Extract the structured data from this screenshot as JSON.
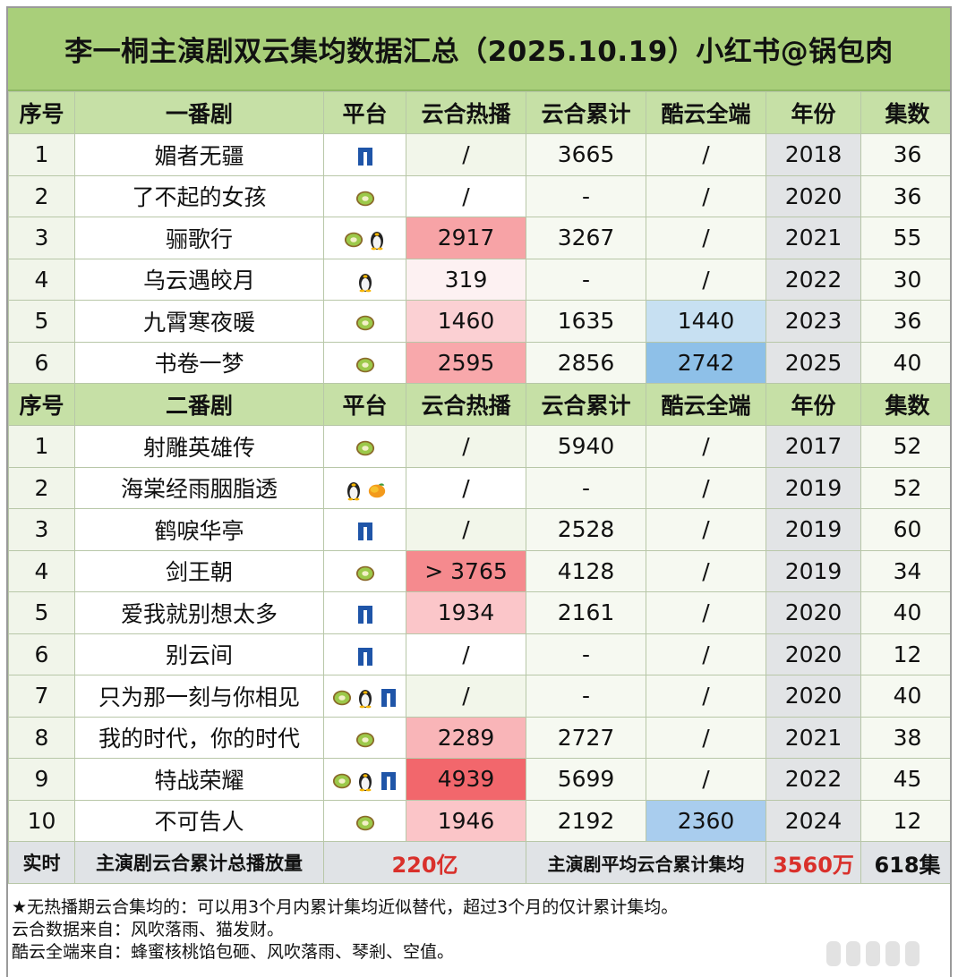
{
  "title": "李一桐主演剧双云集均数据汇总（2025.10.19）小红书@锅包肉",
  "headers": [
    "序号",
    "平台",
    "云合热播",
    "云合累计",
    "酷云全端",
    "年份",
    "集数"
  ],
  "section1": {
    "label": "一番剧",
    "rows": [
      {
        "no": "1",
        "name": "媚者无疆",
        "platforms": [
          "youku"
        ],
        "heat": "/",
        "heat_color": "#f2f6ea",
        "cum": "3665",
        "ku": "/",
        "ku_color": "#f6f9f1",
        "year": "2018",
        "eps": "36"
      },
      {
        "no": "2",
        "name": "了不起的女孩",
        "platforms": [
          "iqiyi"
        ],
        "heat": "/",
        "heat_color": "#ffffff",
        "cum": "-",
        "ku": "/",
        "ku_color": "#f6f9f1",
        "year": "2020",
        "eps": "36"
      },
      {
        "no": "3",
        "name": "骊歌行",
        "platforms": [
          "iqiyi",
          "tencent"
        ],
        "heat": "2917",
        "heat_color": "#f7a3a6",
        "cum": "3267",
        "ku": "/",
        "ku_color": "#f6f9f1",
        "year": "2021",
        "eps": "55"
      },
      {
        "no": "4",
        "name": "乌云遇皎月",
        "platforms": [
          "tencent"
        ],
        "heat": "319",
        "heat_color": "#fdf1f2",
        "cum": "-",
        "ku": "/",
        "ku_color": "#f6f9f1",
        "year": "2022",
        "eps": "30"
      },
      {
        "no": "5",
        "name": "九霄寒夜暖",
        "platforms": [
          "iqiyi"
        ],
        "heat": "1460",
        "heat_color": "#fbd0d3",
        "cum": "1635",
        "ku": "1440",
        "ku_color": "#c7e0f2",
        "year": "2023",
        "eps": "36"
      },
      {
        "no": "6",
        "name": "书卷一梦",
        "platforms": [
          "iqiyi"
        ],
        "heat": "2595",
        "heat_color": "#f8a8ab",
        "cum": "2856",
        "ku": "2742",
        "ku_color": "#8ec0e8",
        "year": "2025",
        "eps": "40"
      }
    ]
  },
  "section2": {
    "label": "二番剧",
    "rows": [
      {
        "no": "1",
        "name": "射雕英雄传",
        "platforms": [
          "iqiyi"
        ],
        "heat": "/",
        "heat_color": "#f2f6ea",
        "cum": "5940",
        "ku": "/",
        "ku_color": "#f6f9f1",
        "year": "2017",
        "eps": "52"
      },
      {
        "no": "2",
        "name": "海棠经雨胭脂透",
        "platforms": [
          "tencent",
          "mango"
        ],
        "heat": "/",
        "heat_color": "#ffffff",
        "cum": "-",
        "ku": "/",
        "ku_color": "#f6f9f1",
        "year": "2019",
        "eps": "52"
      },
      {
        "no": "3",
        "name": "鹤唳华亭",
        "platforms": [
          "youku"
        ],
        "heat": "/",
        "heat_color": "#f2f6ea",
        "cum": "2528",
        "ku": "/",
        "ku_color": "#f6f9f1",
        "year": "2019",
        "eps": "60"
      },
      {
        "no": "4",
        "name": "剑王朝",
        "platforms": [
          "iqiyi"
        ],
        "heat": "> 3765",
        "heat_color": "#f58a8e",
        "cum": "4128",
        "ku": "/",
        "ku_color": "#f6f9f1",
        "year": "2019",
        "eps": "34"
      },
      {
        "no": "5",
        "name": "爱我就别想太多",
        "platforms": [
          "youku"
        ],
        "heat": "1934",
        "heat_color": "#fbc6c9",
        "cum": "2161",
        "ku": "/",
        "ku_color": "#f6f9f1",
        "year": "2020",
        "eps": "40"
      },
      {
        "no": "6",
        "name": "别云间",
        "platforms": [
          "youku"
        ],
        "heat": "/",
        "heat_color": "#ffffff",
        "cum": "-",
        "ku": "/",
        "ku_color": "#f6f9f1",
        "year": "2020",
        "eps": "12"
      },
      {
        "no": "7",
        "name": "只为那一刻与你相见",
        "platforms": [
          "iqiyi",
          "tencent",
          "youku"
        ],
        "heat": "/",
        "heat_color": "#f2f6ea",
        "cum": "-",
        "ku": "/",
        "ku_color": "#f6f9f1",
        "year": "2020",
        "eps": "40"
      },
      {
        "no": "8",
        "name": "我的时代，你的时代",
        "platforms": [
          "iqiyi"
        ],
        "heat": "2289",
        "heat_color": "#f9b5b8",
        "cum": "2727",
        "ku": "/",
        "ku_color": "#f6f9f1",
        "year": "2021",
        "eps": "38"
      },
      {
        "no": "9",
        "name": "特战荣耀",
        "platforms": [
          "iqiyi",
          "tencent",
          "youku"
        ],
        "heat": "4939",
        "heat_color": "#f2676c",
        "cum": "5699",
        "ku": "/",
        "ku_color": "#f6f9f1",
        "year": "2022",
        "eps": "45"
      },
      {
        "no": "10",
        "name": "不可告人",
        "platforms": [
          "iqiyi"
        ],
        "heat": "1946",
        "heat_color": "#fbc5c8",
        "cum": "2192",
        "ku": "2360",
        "ku_color": "#a9cdee",
        "year": "2024",
        "eps": "12"
      }
    ]
  },
  "footer": {
    "label": "实时",
    "total_label": "主演剧云合累计总播放量",
    "total_value": "220亿",
    "avg_label": "主演剧平均云合累计集均",
    "avg_value": "3560万",
    "eps_total": "618集"
  },
  "notes": [
    "★无热播期云合集均的：可以用3个月内累计集均近似替代，超过3个月的仅计累计集均。",
    "云合数据来自：风吹落雨、猫发财。",
    "酷云全端来自：蜂蜜核桃馅包砸、风吹落雨、琴剎、空值。"
  ],
  "platform_icons": {
    "youku": "youku-icon",
    "iqiyi": "iqiyi-kiwi-icon",
    "tencent": "tencent-penguin-icon",
    "mango": "mango-icon"
  }
}
